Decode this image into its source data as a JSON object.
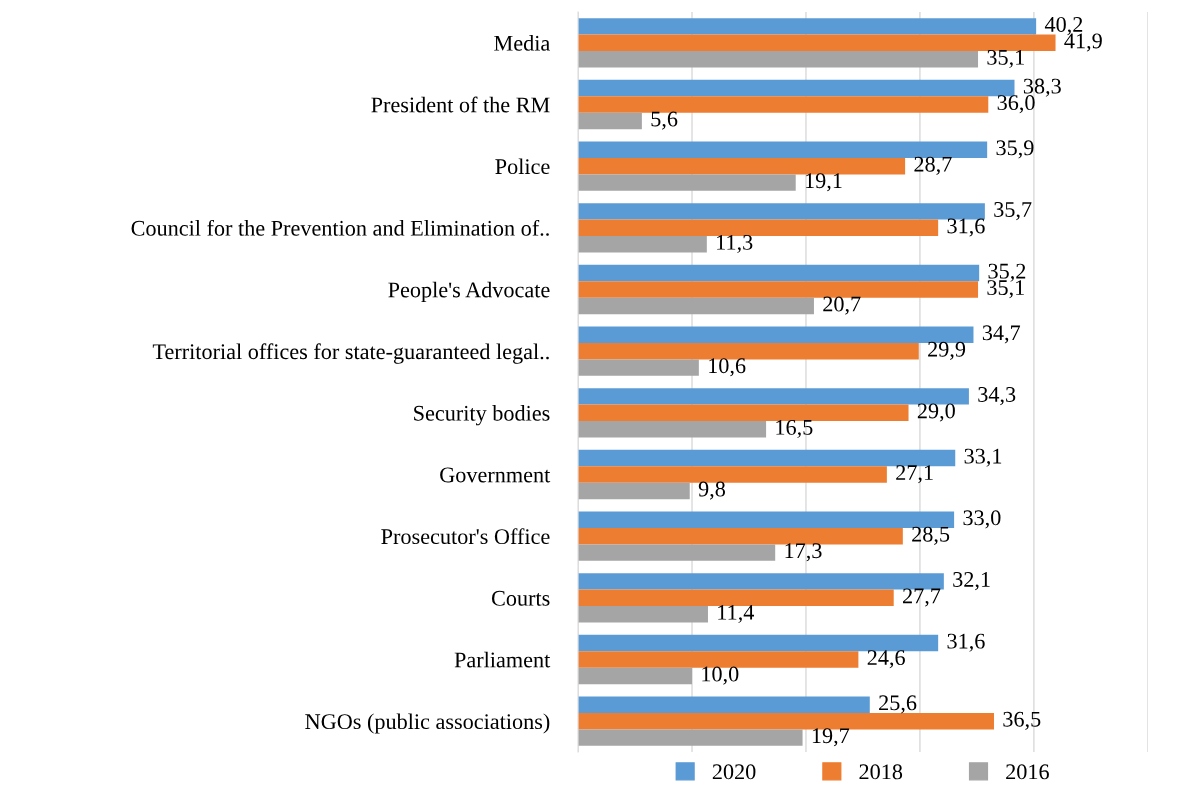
{
  "chart_data": {
    "type": "bar",
    "orientation": "horizontal",
    "categories": [
      "Media",
      "President of the RM",
      "Police",
      "Council for the Prevention and Elimination of..",
      "People's Advocate",
      "Territorial offices for state-guaranteed legal..",
      "Security bodies",
      "Government",
      "Prosecutor's Office",
      "Courts",
      "Parliament",
      "NGOs (public associations)"
    ],
    "series": [
      {
        "name": "2020",
        "color": "#5b9bd5",
        "values": [
          40.2,
          38.3,
          35.9,
          35.7,
          35.2,
          34.7,
          34.3,
          33.1,
          33.0,
          32.1,
          31.6,
          25.6
        ],
        "value_labels": [
          "40,2",
          "38,3",
          "35,9",
          "35,7",
          "35,2",
          "34,7",
          "34,3",
          "33,1",
          "33,0",
          "32,1",
          "31,6",
          "25,6"
        ]
      },
      {
        "name": "2018",
        "color": "#ed7d31",
        "values": [
          41.9,
          36.0,
          28.7,
          31.6,
          35.1,
          29.9,
          29.0,
          27.1,
          28.5,
          27.7,
          24.6,
          36.5
        ],
        "value_labels": [
          "41,9",
          "36,0",
          "28,7",
          "31,6",
          "35,1",
          "29,9",
          "29,0",
          "27,1",
          "28,5",
          "27,7",
          "24,6",
          "36,5"
        ]
      },
      {
        "name": "2016",
        "color": "#a5a5a5",
        "values": [
          35.1,
          5.6,
          19.1,
          11.3,
          20.7,
          10.6,
          16.5,
          9.8,
          17.3,
          11.4,
          10.0,
          19.7
        ],
        "value_labels": [
          "35,1",
          "5,6",
          "19,1",
          "11,3",
          "20,7",
          "10,6",
          "16,5",
          "9,8",
          "17,3",
          "11,4",
          "10,0",
          "19,7"
        ]
      }
    ],
    "xlim": [
      0,
      50
    ],
    "xticks": [
      {
        "value": 0,
        "label": null
      },
      {
        "value": 10,
        "label": null
      },
      {
        "value": 20,
        "label": null
      },
      {
        "value": 30,
        "label": null
      },
      {
        "value": 40,
        "label": null
      },
      {
        "value": 50,
        "label": null
      }
    ],
    "tick_labels": "y",
    "grid": "x",
    "legend": "bottom"
  }
}
